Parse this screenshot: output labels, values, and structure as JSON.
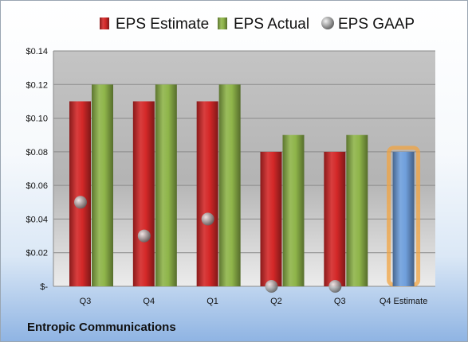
{
  "company": "Entropic Communications",
  "chart_data": {
    "type": "bar",
    "categories": [
      "Q3",
      "Q4",
      "Q1",
      "Q2",
      "Q3",
      "Q4 Estimate"
    ],
    "series": [
      {
        "name": "EPS Estimate",
        "values": [
          0.11,
          0.11,
          0.11,
          0.08,
          0.08,
          0.08
        ],
        "color": "#d42828",
        "highlight_index": 5,
        "highlight_color": "#6f9fdc"
      },
      {
        "name": "EPS Actual",
        "values": [
          0.12,
          0.12,
          0.12,
          0.09,
          0.09,
          null
        ],
        "color": "#8fb54a"
      },
      {
        "name": "EPS GAAP",
        "type": "scatter",
        "values": [
          0.05,
          0.03,
          0.04,
          0.0,
          0.0,
          null
        ],
        "color": "#9a9a9a"
      }
    ],
    "ylim": [
      0,
      0.14
    ],
    "yticks": [
      0,
      0.02,
      0.04,
      0.06,
      0.08,
      0.1,
      0.12,
      0.14
    ],
    "ytick_labels": [
      "$-",
      "$0.02",
      "$0.04",
      "$0.06",
      "$0.08",
      "$0.10",
      "$0.12",
      "$0.14"
    ],
    "grid": true,
    "legend": "top"
  }
}
